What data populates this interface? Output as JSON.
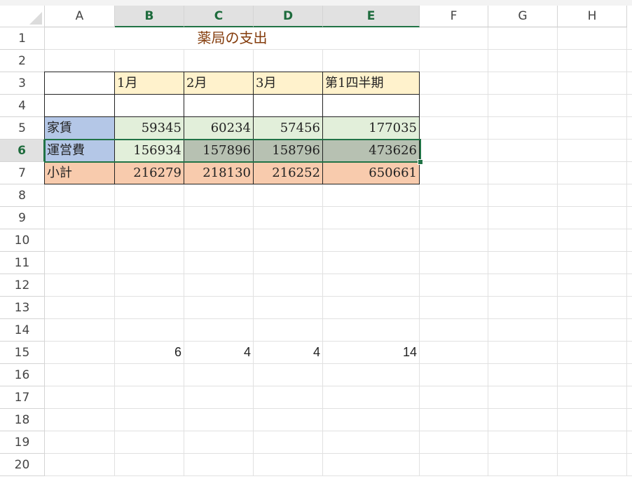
{
  "columns": [
    "A",
    "B",
    "C",
    "D",
    "E",
    "F",
    "G",
    "H"
  ],
  "selected_columns": [
    "B",
    "C",
    "D",
    "E"
  ],
  "selected_row": 6,
  "rows": 20,
  "title": "薬局の支出",
  "colors": {
    "header_fill": "#fff2cc",
    "label_fill": "#b4c7e7",
    "data_fill": "#e2efda",
    "selected_fill": "#b7c1b2",
    "total_fill": "#f8cbad",
    "title_color": "#843c0c",
    "accent": "#217346"
  },
  "cells": {
    "B3": "1月",
    "C3": "2月",
    "D3": "3月",
    "E3": "第1四半期",
    "A5": "家賃",
    "B5": "59345",
    "C5": "60234",
    "D5": "57456",
    "E5": "177035",
    "A6": "運営費",
    "B6": "156934",
    "C6": "157896",
    "D6": "158796",
    "E6": "473626",
    "A7": "小計",
    "B7": "216279",
    "C7": "218130",
    "D7": "216252",
    "E7": "650661",
    "B15": "6",
    "C15": "4",
    "D15": "4",
    "E15": "14"
  }
}
